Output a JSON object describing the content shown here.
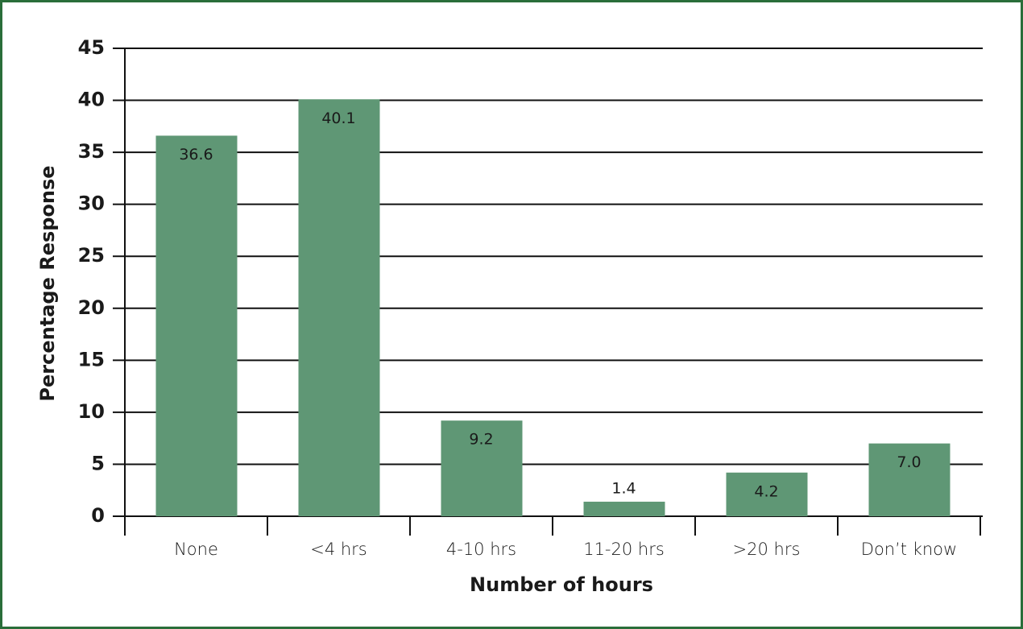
{
  "chart_data": {
    "type": "bar",
    "x_label": "Number of hours",
    "y_label": "Percentage Response",
    "categories": [
      "None",
      "<4 hrs",
      "4-10 hrs",
      "11-20 hrs",
      ">20 hrs",
      "Don’t know"
    ],
    "values": [
      36.6,
      40.1,
      9.2,
      1.4,
      4.2,
      7.0
    ],
    "value_labels": [
      "36.6",
      "40.1",
      "9.2",
      "1.4",
      "4.2",
      "7.0"
    ],
    "color": "#5f9775",
    "ylim": [
      0,
      45
    ],
    "yticks": [
      0,
      5,
      10,
      15,
      20,
      25,
      30,
      35,
      40,
      45
    ],
    "grid": true
  }
}
